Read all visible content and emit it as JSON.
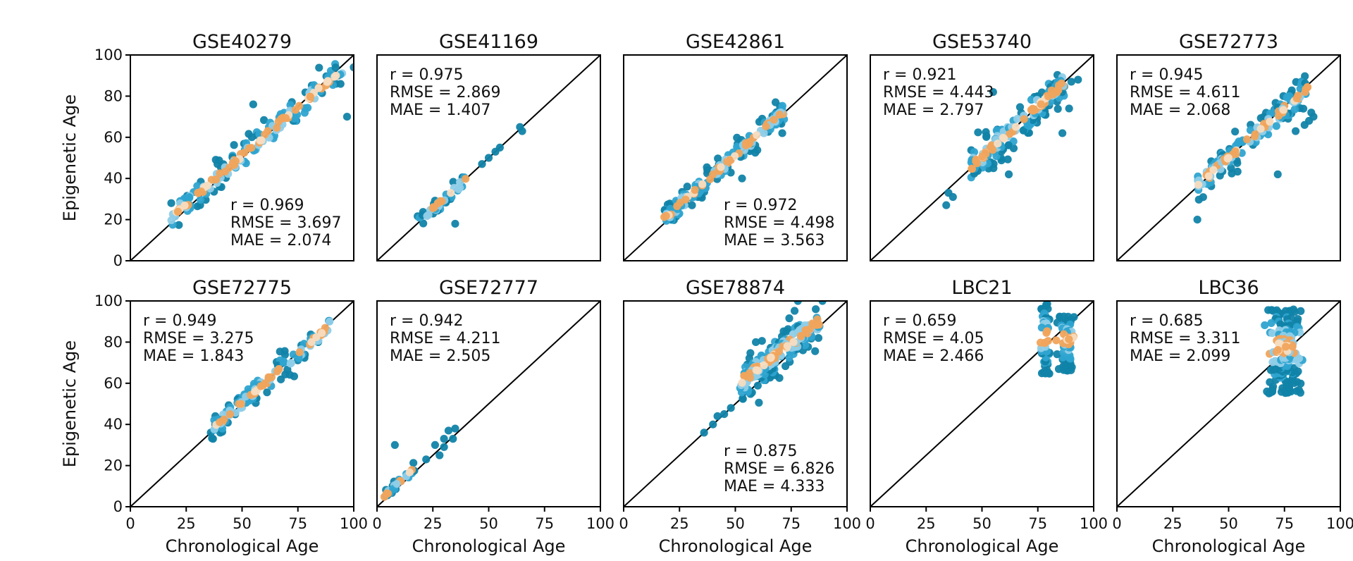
{
  "chart_data": [
    {
      "type": "scatter",
      "title": "GSE40279",
      "xlabel": "",
      "ylabel": "Epigenetic Age",
      "xlim": [
        0,
        100
      ],
      "ylim": [
        0,
        100
      ],
      "annotation_position": "bottom-right",
      "stats": [
        "r = 0.969",
        "RMSE = 3.697",
        "MAE = 2.074"
      ],
      "x_ticks": [],
      "y_ticks": [
        "0",
        "20",
        "40",
        "60",
        "80",
        "100"
      ],
      "cluster": {
        "x_range": [
          18,
          95
        ],
        "slope": 0.94,
        "intercept": 4,
        "spread": 3.5,
        "count": 170
      },
      "outliers": [
        [
          40,
          36
        ],
        [
          55,
          76
        ],
        [
          97,
          70
        ],
        [
          100,
          94
        ],
        [
          92,
          86
        ],
        [
          93,
          90
        ]
      ]
    },
    {
      "type": "scatter",
      "title": "GSE41169",
      "xlabel": "",
      "ylabel": "",
      "xlim": [
        0,
        100
      ],
      "ylim": [
        0,
        100
      ],
      "annotation_position": "top-left",
      "stats": [
        "r = 0.975",
        "RMSE = 2.869",
        "MAE = 1.407"
      ],
      "x_ticks": [],
      "y_ticks": [],
      "cluster": {
        "x_range": [
          18,
          40
        ],
        "slope": 1.0,
        "intercept": 0,
        "spread": 2,
        "count": 45
      },
      "outliers": [
        [
          35,
          18
        ],
        [
          47,
          47
        ],
        [
          50,
          50
        ],
        [
          53,
          53
        ],
        [
          55,
          55
        ],
        [
          64,
          65
        ],
        [
          65,
          63
        ]
      ]
    },
    {
      "type": "scatter",
      "title": "GSE42861",
      "xlabel": "",
      "ylabel": "",
      "xlim": [
        0,
        100
      ],
      "ylim": [
        0,
        100
      ],
      "annotation_position": "bottom-right",
      "stats": [
        "r = 0.972",
        "RMSE = 4.498",
        "MAE = 3.563"
      ],
      "x_ticks": [],
      "y_ticks": [],
      "cluster": {
        "x_range": [
          18,
          72
        ],
        "slope": 0.97,
        "intercept": 3,
        "spread": 2.8,
        "count": 170
      },
      "outliers": [
        [
          53,
          40
        ],
        [
          62,
          69
        ],
        [
          68,
          77
        ],
        [
          70,
          75
        ],
        [
          71,
          62
        ]
      ]
    },
    {
      "type": "scatter",
      "title": "GSE53740",
      "xlabel": "",
      "ylabel": "",
      "xlim": [
        0,
        100
      ],
      "ylim": [
        0,
        100
      ],
      "annotation_position": "top-left",
      "stats": [
        "r = 0.921",
        "RMSE = 4.443",
        "MAE = 2.797"
      ],
      "x_ticks": [],
      "y_ticks": [],
      "cluster": {
        "x_range": [
          45,
          87
        ],
        "slope": 0.98,
        "intercept": 1.5,
        "spread": 4,
        "count": 160
      },
      "outliers": [
        [
          34,
          27
        ],
        [
          35,
          33
        ],
        [
          37,
          31
        ],
        [
          55,
          82
        ],
        [
          62,
          42
        ],
        [
          86,
          62
        ],
        [
          90,
          87
        ],
        [
          93,
          88
        ],
        [
          89,
          74
        ]
      ]
    },
    {
      "type": "scatter",
      "title": "GSE72773",
      "xlabel": "",
      "ylabel": "",
      "xlim": [
        0,
        100
      ],
      "ylim": [
        0,
        100
      ],
      "annotation_position": "top-left",
      "stats": [
        "r = 0.945",
        "RMSE = 4.611",
        "MAE = 2.068"
      ],
      "x_ticks": [],
      "y_ticks": [],
      "cluster": {
        "x_range": [
          36,
          86
        ],
        "slope": 0.96,
        "intercept": 2,
        "spread": 3.5,
        "count": 160
      },
      "outliers": [
        [
          36,
          20
        ],
        [
          72,
          42
        ],
        [
          80,
          63
        ],
        [
          86,
          68
        ],
        [
          88,
          70
        ],
        [
          87,
          72
        ],
        [
          84,
          66
        ]
      ]
    },
    {
      "type": "scatter",
      "title": "GSE72775",
      "xlabel": "Chronological Age",
      "ylabel": "Epigenetic Age",
      "xlim": [
        0,
        100
      ],
      "ylim": [
        0,
        100
      ],
      "annotation_position": "top-left",
      "stats": [
        "r = 0.949",
        "RMSE = 3.275",
        "MAE = 1.843"
      ],
      "x_ticks": [
        "0",
        "25",
        "50",
        "75",
        "100"
      ],
      "y_ticks": [
        "0",
        "20",
        "40",
        "60",
        "80",
        "100"
      ],
      "cluster": {
        "x_range": [
          36,
          90
        ],
        "slope": 0.95,
        "intercept": 3,
        "spread": 2.8,
        "count": 130
      },
      "outliers": [
        [
          37,
          33
        ],
        [
          36,
          36
        ],
        [
          38,
          40
        ]
      ]
    },
    {
      "type": "scatter",
      "title": "GSE72777",
      "xlabel": "Chronological Age",
      "ylabel": "",
      "xlim": [
        0,
        100
      ],
      "ylim": [
        0,
        100
      ],
      "annotation_position": "top-left",
      "stats": [
        "r = 0.942",
        "RMSE = 4.211",
        "MAE = 2.505"
      ],
      "x_ticks": [
        "0",
        "25",
        "50",
        "75",
        "100"
      ],
      "y_ticks": [],
      "cluster": {
        "x_range": [
          3,
          17
        ],
        "slope": 1.0,
        "intercept": 2,
        "spread": 1.2,
        "count": 30
      },
      "outliers": [
        [
          8,
          30
        ],
        [
          22,
          23
        ],
        [
          26,
          30
        ],
        [
          28,
          25
        ],
        [
          30,
          29
        ],
        [
          32,
          37
        ],
        [
          35,
          38
        ],
        [
          34,
          33
        ],
        [
          30,
          33
        ]
      ]
    },
    {
      "type": "scatter",
      "title": "GSE78874",
      "xlabel": "Chronological Age",
      "ylabel": "",
      "xlim": [
        0,
        100
      ],
      "ylim": [
        0,
        100
      ],
      "annotation_position": "bottom-right",
      "stats": [
        "r = 0.875",
        "RMSE = 6.826",
        "MAE = 4.333"
      ],
      "x_ticks": [
        "0",
        "25",
        "50",
        "75",
        "100"
      ],
      "y_ticks": [],
      "cluster": {
        "x_range": [
          52,
          88
        ],
        "slope": 0.85,
        "intercept": 16,
        "spread": 5,
        "count": 190
      },
      "outliers": [
        [
          36,
          36
        ],
        [
          40,
          40
        ],
        [
          42,
          44
        ],
        [
          45,
          45
        ],
        [
          48,
          48
        ],
        [
          78,
          100
        ],
        [
          86,
          96
        ],
        [
          89,
          100
        ]
      ]
    },
    {
      "type": "scatter",
      "title": "LBC21",
      "xlabel": "Chronological Age",
      "ylabel": "",
      "xlim": [
        0,
        100
      ],
      "ylim": [
        0,
        100
      ],
      "annotation_position": "top-left",
      "stats": [
        "r = 0.659",
        "RMSE = 4.05",
        "MAE = 2.466"
      ],
      "x_ticks": [
        "0",
        "25",
        "50",
        "75",
        "100"
      ],
      "y_ticks": [],
      "vertical_clusters": [
        {
          "x_center": 78.5,
          "x_spread": 1.2,
          "y_range": [
            63,
            99
          ],
          "count": 55
        },
        {
          "x_center": 88,
          "x_spread": 1.8,
          "y_range": [
            66,
            93
          ],
          "count": 70
        }
      ],
      "outliers": []
    },
    {
      "type": "scatter",
      "title": "LBC36",
      "xlabel": "Chronological Age",
      "ylabel": "",
      "xlim": [
        0,
        100
      ],
      "ylim": [
        0,
        100
      ],
      "annotation_position": "top-left",
      "stats": [
        "r = 0.685",
        "RMSE = 3.311",
        "MAE = 2.099"
      ],
      "x_ticks": [
        "0",
        "25",
        "50",
        "75",
        "100"
      ],
      "y_ticks": [],
      "vertical_clusters": [
        {
          "x_center": 75,
          "x_spread": 3.5,
          "y_range": [
            55,
            96
          ],
          "count": 170
        }
      ],
      "outliers": []
    }
  ],
  "colors": {
    "dot_dark": "#1183a8",
    "dot_mid": "#2ea4d0",
    "dot_light": "#8fcde8",
    "dot_orange": "#f0a45c",
    "dot_cream": "#f7dcc0",
    "diagonal": "#000000",
    "frame": "#000000"
  }
}
